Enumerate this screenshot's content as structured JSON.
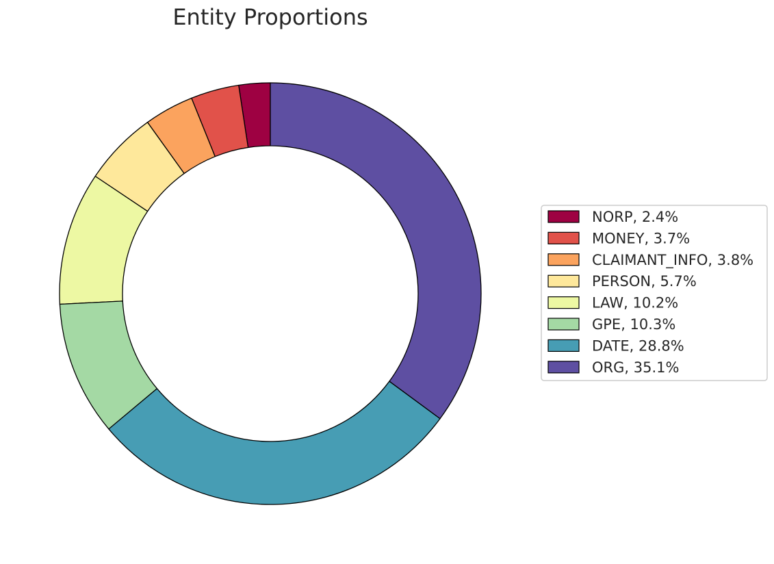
{
  "chart_data": {
    "type": "pie",
    "style": "donut",
    "title": "Entity Proportions",
    "legend_position": "right",
    "start_angle_deg": 90,
    "direction": "counterclockwise",
    "slices": [
      {
        "label": "NORP",
        "value": 2.4,
        "legend": "NORP, 2.4%",
        "color": "#9e0142"
      },
      {
        "label": "MONEY",
        "value": 3.7,
        "legend": "MONEY, 3.7%",
        "color": "#e1524a"
      },
      {
        "label": "CLAIMANT_INFO",
        "value": 3.8,
        "legend": "CLAIMANT_INFO, 3.8%",
        "color": "#fba35e"
      },
      {
        "label": "PERSON",
        "value": 5.7,
        "legend": "PERSON, 5.7%",
        "color": "#fee89b"
      },
      {
        "label": "LAW",
        "value": 10.2,
        "legend": "LAW, 10.2%",
        "color": "#edf8a3"
      },
      {
        "label": "GPE",
        "value": 10.3,
        "legend": "GPE, 10.3%",
        "color": "#a4d9a4"
      },
      {
        "label": "DATE",
        "value": 28.8,
        "legend": "DATE, 28.8%",
        "color": "#479db4"
      },
      {
        "label": "ORG",
        "value": 35.1,
        "legend": "ORG, 35.1%",
        "color": "#5e4fa2"
      }
    ]
  }
}
